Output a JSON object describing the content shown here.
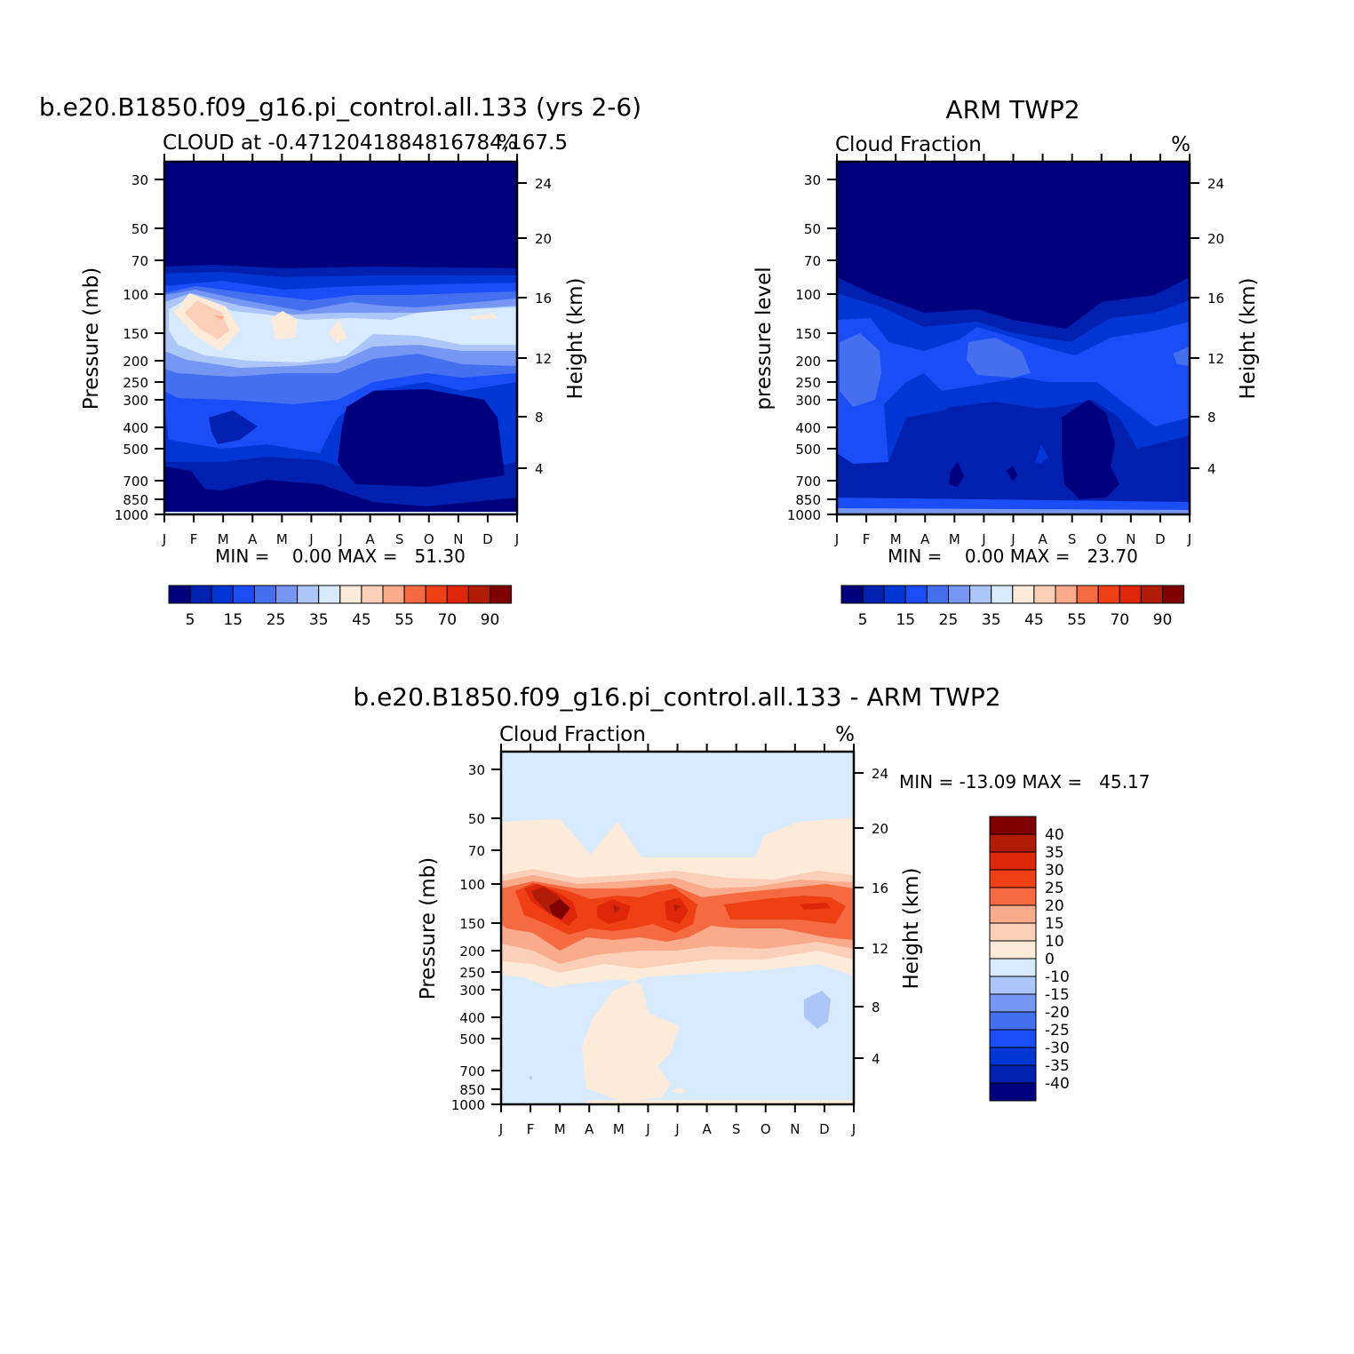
{
  "chart_data": [
    {
      "type": "heatmap",
      "title": "b.e20.B1850.f09_g16.pi_control.all.133 (yrs 2-6)",
      "subtitle_left": "CLOUD at -0.4712041884816784,167.5",
      "subtitle_right": "%",
      "ylabel": "Pressure (mb)",
      "ylabel_right": "Height (km)",
      "x_categories": [
        "J",
        "F",
        "M",
        "A",
        "M",
        "J",
        "J",
        "A",
        "S",
        "O",
        "N",
        "D",
        "J"
      ],
      "y_ticks": [
        "30",
        "50",
        "70",
        "100",
        "150",
        "200",
        "250",
        "300",
        "400",
        "500",
        "700",
        "850",
        "1000"
      ],
      "y_ticks_right": [
        "24",
        "20",
        "16",
        "12",
        "8",
        "4"
      ],
      "min_max_text": "MIN =    0.00 MAX =   51.30",
      "colorbar_labels": [
        "5",
        "15",
        "25",
        "35",
        "45",
        "55",
        "70",
        "90"
      ],
      "value_range": [
        0,
        51.3
      ]
    },
    {
      "type": "heatmap",
      "title": "ARM TWP2",
      "subtitle_left": "Cloud Fraction",
      "subtitle_right": "%",
      "ylabel": "pressure level",
      "ylabel_right": "Height (km)",
      "x_categories": [
        "J",
        "F",
        "M",
        "A",
        "M",
        "J",
        "J",
        "A",
        "S",
        "O",
        "N",
        "D",
        "J"
      ],
      "y_ticks": [
        "30",
        "50",
        "70",
        "100",
        "150",
        "200",
        "250",
        "300",
        "400",
        "500",
        "700",
        "850",
        "1000"
      ],
      "y_ticks_right": [
        "24",
        "20",
        "16",
        "12",
        "8",
        "4"
      ],
      "min_max_text": "MIN =    0.00 MAX =   23.70",
      "colorbar_labels": [
        "5",
        "15",
        "25",
        "35",
        "45",
        "55",
        "70",
        "90"
      ],
      "value_range": [
        0,
        23.7
      ]
    },
    {
      "type": "heatmap",
      "title": "b.e20.B1850.f09_g16.pi_control.all.133 - ARM TWP2",
      "subtitle_left": "Cloud Fraction",
      "subtitle_right": "%",
      "ylabel": "Pressure (mb)",
      "ylabel_right": "Height (km)",
      "x_categories": [
        "J",
        "F",
        "M",
        "A",
        "M",
        "J",
        "J",
        "A",
        "S",
        "O",
        "N",
        "D",
        "J"
      ],
      "y_ticks": [
        "30",
        "50",
        "70",
        "100",
        "150",
        "200",
        "250",
        "300",
        "400",
        "500",
        "700",
        "850",
        "1000"
      ],
      "y_ticks_right": [
        "24",
        "20",
        "16",
        "12",
        "8",
        "4"
      ],
      "min_max_text": "MIN = -13.09 MAX =   45.17",
      "colorbar_labels": [
        "40",
        "35",
        "30",
        "25",
        "20",
        "15",
        "10",
        "0",
        "-10",
        "-15",
        "-20",
        "-25",
        "-30",
        "-35",
        "-40"
      ],
      "value_range": [
        -13.09,
        45.17
      ]
    }
  ],
  "colors": {
    "seq_palette": [
      "#00007f",
      "#0020b0",
      "#0036d4",
      "#1a4df5",
      "#4470f0",
      "#7596f2",
      "#adc6f9",
      "#d8eafd",
      "#feead9",
      "#fcd0b8",
      "#f9ab8c",
      "#f56a40",
      "#ef3f14",
      "#e02608",
      "#b01c05",
      "#800000"
    ],
    "diff_palette": [
      "#00007f",
      "#0020b0",
      "#0036d4",
      "#1a4df5",
      "#4470f0",
      "#7596f2",
      "#adc6f9",
      "#d8eafd",
      "#feead9",
      "#fcd0b8",
      "#f9ab8c",
      "#f56a40",
      "#ef3f14",
      "#e02608",
      "#b01c05",
      "#800000"
    ]
  }
}
